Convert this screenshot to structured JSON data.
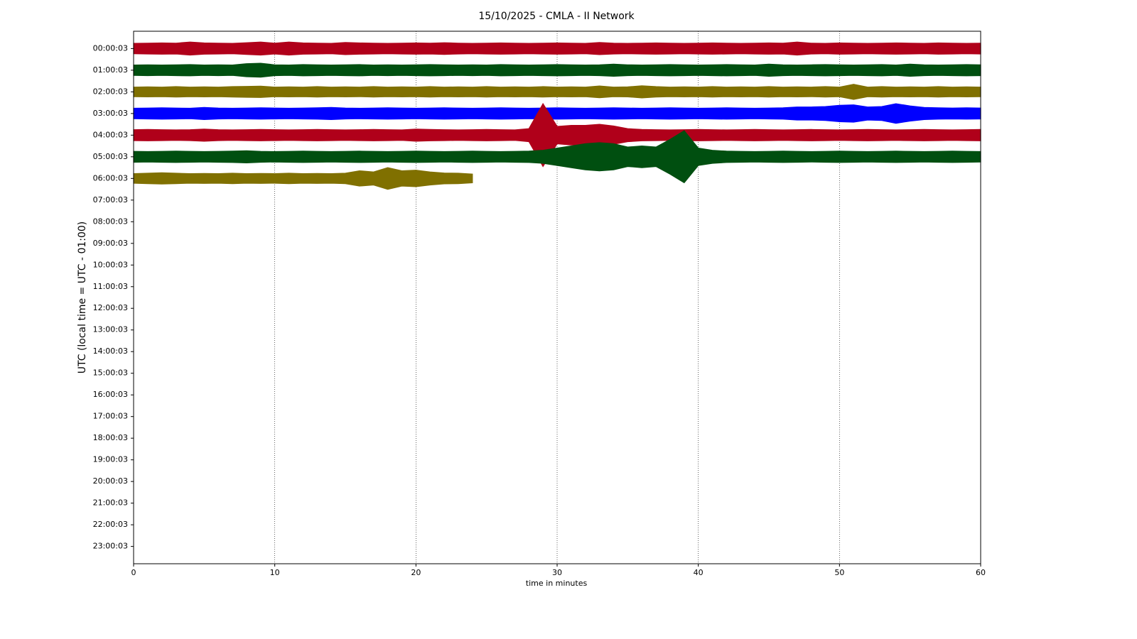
{
  "chart_data": {
    "type": "helicorder",
    "title": "15/10/2025 - CMLA - II Network",
    "x_label": "time in minutes",
    "y_label": "UTC (local time = UTC - 01:00)",
    "xlim": [
      0,
      60
    ],
    "xticks": [
      0,
      10,
      20,
      30,
      40,
      50,
      60
    ],
    "grid": "x",
    "ylim": [
      23.8,
      -0.8
    ],
    "yticks": [
      {
        "value": 0,
        "label": "00:00:03"
      },
      {
        "value": 1,
        "label": "01:00:03"
      },
      {
        "value": 2,
        "label": "02:00:03"
      },
      {
        "value": 3,
        "label": "03:00:03"
      },
      {
        "value": 4,
        "label": "04:00:03"
      },
      {
        "value": 5,
        "label": "05:00:03"
      },
      {
        "value": 6,
        "label": "06:00:03"
      },
      {
        "value": 7,
        "label": "07:00:03"
      },
      {
        "value": 8,
        "label": "08:00:03"
      },
      {
        "value": 9,
        "label": "09:00:03"
      },
      {
        "value": 10,
        "label": "10:00:03"
      },
      {
        "value": 11,
        "label": "11:00:03"
      },
      {
        "value": 12,
        "label": "12:00:03"
      },
      {
        "value": 13,
        "label": "13:00:03"
      },
      {
        "value": 14,
        "label": "14:00:03"
      },
      {
        "value": 15,
        "label": "15:00:03"
      },
      {
        "value": 16,
        "label": "16:00:03"
      },
      {
        "value": 17,
        "label": "17:00:03"
      },
      {
        "value": 18,
        "label": "18:00:03"
      },
      {
        "value": 19,
        "label": "19:00:03"
      },
      {
        "value": 20,
        "label": "20:00:03"
      },
      {
        "value": 21,
        "label": "21:00:03"
      },
      {
        "value": 22,
        "label": "22:00:03"
      },
      {
        "value": 23,
        "label": "23:00:03"
      }
    ],
    "x": [
      0,
      1,
      2,
      3,
      4,
      5,
      6,
      7,
      8,
      9,
      10,
      11,
      12,
      13,
      14,
      15,
      16,
      17,
      18,
      19,
      20,
      21,
      22,
      23,
      24,
      25,
      26,
      27,
      28,
      29,
      30,
      31,
      32,
      33,
      34,
      35,
      36,
      37,
      38,
      39,
      40,
      41,
      42,
      43,
      44,
      45,
      46,
      47,
      48,
      49,
      50,
      51,
      52,
      53,
      54,
      55,
      56,
      57,
      58,
      59,
      60
    ],
    "series": [
      {
        "color": "#b0001a",
        "baseline": 0,
        "values": [
          0.24,
          0.25,
          0.26,
          0.25,
          0.3,
          0.26,
          0.25,
          0.24,
          0.27,
          0.3,
          0.25,
          0.3,
          0.26,
          0.25,
          0.24,
          0.28,
          0.26,
          0.25,
          0.24,
          0.25,
          0.26,
          0.25,
          0.27,
          0.25,
          0.24,
          0.25,
          0.26,
          0.25,
          0.24,
          0.25,
          0.26,
          0.25,
          0.24,
          0.28,
          0.25,
          0.24,
          0.25,
          0.26,
          0.25,
          0.24,
          0.25,
          0.26,
          0.25,
          0.24,
          0.25,
          0.26,
          0.25,
          0.3,
          0.25,
          0.24,
          0.26,
          0.25,
          0.24,
          0.25,
          0.26,
          0.25,
          0.24,
          0.26,
          0.25,
          0.24,
          0.25
        ]
      },
      {
        "color": "#004f10",
        "baseline": 1,
        "values": [
          0.24,
          0.25,
          0.24,
          0.25,
          0.26,
          0.24,
          0.25,
          0.24,
          0.3,
          0.32,
          0.25,
          0.24,
          0.26,
          0.25,
          0.24,
          0.25,
          0.26,
          0.24,
          0.25,
          0.24,
          0.25,
          0.26,
          0.25,
          0.24,
          0.25,
          0.24,
          0.26,
          0.25,
          0.24,
          0.25,
          0.26,
          0.25,
          0.24,
          0.25,
          0.28,
          0.25,
          0.24,
          0.25,
          0.26,
          0.25,
          0.24,
          0.25,
          0.26,
          0.25,
          0.24,
          0.28,
          0.25,
          0.24,
          0.25,
          0.26,
          0.25,
          0.24,
          0.25,
          0.26,
          0.24,
          0.28,
          0.25,
          0.24,
          0.25,
          0.26,
          0.25
        ]
      },
      {
        "color": "#807000",
        "baseline": 2,
        "values": [
          0.22,
          0.23,
          0.22,
          0.24,
          0.22,
          0.23,
          0.22,
          0.24,
          0.25,
          0.26,
          0.22,
          0.23,
          0.22,
          0.24,
          0.22,
          0.23,
          0.22,
          0.24,
          0.22,
          0.23,
          0.22,
          0.24,
          0.22,
          0.23,
          0.22,
          0.24,
          0.22,
          0.23,
          0.22,
          0.24,
          0.22,
          0.23,
          0.22,
          0.27,
          0.22,
          0.23,
          0.28,
          0.24,
          0.22,
          0.23,
          0.22,
          0.24,
          0.22,
          0.23,
          0.22,
          0.24,
          0.22,
          0.23,
          0.22,
          0.24,
          0.22,
          0.35,
          0.22,
          0.24,
          0.22,
          0.23,
          0.22,
          0.24,
          0.22,
          0.23,
          0.22
        ]
      },
      {
        "color": "#0000ff",
        "baseline": 3,
        "values": [
          0.24,
          0.25,
          0.26,
          0.25,
          0.24,
          0.28,
          0.25,
          0.24,
          0.25,
          0.26,
          0.25,
          0.24,
          0.25,
          0.26,
          0.28,
          0.25,
          0.24,
          0.25,
          0.26,
          0.25,
          0.24,
          0.25,
          0.26,
          0.25,
          0.24,
          0.25,
          0.26,
          0.25,
          0.24,
          0.25,
          0.26,
          0.25,
          0.24,
          0.25,
          0.26,
          0.25,
          0.24,
          0.25,
          0.26,
          0.25,
          0.24,
          0.25,
          0.26,
          0.25,
          0.24,
          0.25,
          0.26,
          0.3,
          0.3,
          0.32,
          0.38,
          0.4,
          0.3,
          0.32,
          0.45,
          0.35,
          0.28,
          0.26,
          0.25,
          0.26,
          0.25
        ]
      },
      {
        "color": "#b0001a",
        "baseline": 4,
        "values": [
          0.25,
          0.26,
          0.25,
          0.24,
          0.25,
          0.28,
          0.25,
          0.24,
          0.25,
          0.26,
          0.25,
          0.24,
          0.25,
          0.26,
          0.25,
          0.24,
          0.25,
          0.26,
          0.25,
          0.24,
          0.28,
          0.26,
          0.25,
          0.24,
          0.25,
          0.26,
          0.25,
          0.24,
          0.3,
          1.45,
          0.4,
          0.45,
          0.45,
          0.5,
          0.42,
          0.3,
          0.26,
          0.25,
          0.24,
          0.25,
          0.26,
          0.25,
          0.24,
          0.25,
          0.26,
          0.25,
          0.24,
          0.25,
          0.26,
          0.25,
          0.24,
          0.25,
          0.26,
          0.25,
          0.24,
          0.25,
          0.26,
          0.25,
          0.24,
          0.25,
          0.26
        ]
      },
      {
        "color": "#004f10",
        "baseline": 5,
        "values": [
          0.25,
          0.24,
          0.25,
          0.26,
          0.25,
          0.24,
          0.25,
          0.26,
          0.28,
          0.25,
          0.24,
          0.25,
          0.26,
          0.25,
          0.24,
          0.25,
          0.26,
          0.25,
          0.24,
          0.25,
          0.26,
          0.25,
          0.24,
          0.25,
          0.26,
          0.25,
          0.24,
          0.25,
          0.26,
          0.3,
          0.4,
          0.5,
          0.6,
          0.65,
          0.6,
          0.45,
          0.5,
          0.45,
          0.8,
          1.2,
          0.4,
          0.3,
          0.26,
          0.25,
          0.24,
          0.25,
          0.26,
          0.25,
          0.24,
          0.25,
          0.26,
          0.25,
          0.24,
          0.25,
          0.26,
          0.25,
          0.24,
          0.25,
          0.26,
          0.25,
          0.24
        ]
      },
      {
        "color": "#807000",
        "baseline": 6,
        "values": [
          0.22,
          0.24,
          0.26,
          0.24,
          0.22,
          0.23,
          0.22,
          0.24,
          0.22,
          0.23,
          0.22,
          0.24,
          0.22,
          0.23,
          0.22,
          0.24,
          0.35,
          0.3,
          0.5,
          0.35,
          0.38,
          0.3,
          0.25,
          0.24,
          0.2,
          null,
          null,
          null,
          null,
          null,
          null,
          null,
          null,
          null,
          null,
          null,
          null,
          null,
          null,
          null,
          null,
          null,
          null,
          null,
          null,
          null,
          null,
          null,
          null,
          null,
          null,
          null,
          null,
          null,
          null,
          null,
          null,
          null,
          null,
          null,
          null
        ]
      }
    ]
  }
}
